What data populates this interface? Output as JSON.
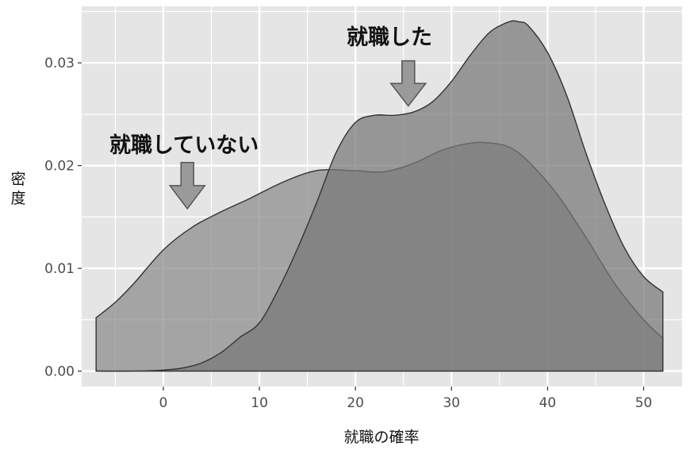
{
  "chart_data": {
    "type": "area",
    "xlabel": "就職の確率",
    "ylabel": "密度",
    "xlim": [
      -8.5,
      54
    ],
    "ylim": [
      -0.0015,
      0.0355
    ],
    "x_ticks": [
      0,
      10,
      20,
      30,
      40,
      50
    ],
    "x_tick_labels": [
      "0",
      "10",
      "20",
      "30",
      "40",
      "50"
    ],
    "y_ticks": [
      0.0,
      0.01,
      0.02,
      0.03
    ],
    "y_tick_labels": [
      "0.00",
      "0.01",
      "0.02",
      "0.03"
    ],
    "grid": true,
    "colors": {
      "panel": "#e5e5e5",
      "grid": "#ffffff",
      "fill_not_employed": "#8a8a8a",
      "fill_employed": "#777777",
      "line": "#333333",
      "arrow_fill": "#9a9a9a",
      "arrow_stroke": "#555555"
    },
    "series": [
      {
        "x": [
          -7,
          -5,
          -3,
          0,
          3,
          6,
          9,
          12,
          15,
          17,
          20,
          23,
          26,
          29,
          32,
          34,
          36,
          38,
          41,
          44,
          47,
          50,
          52
        ],
        "values": [
          0.0052,
          0.0067,
          0.0086,
          0.0118,
          0.014,
          0.0155,
          0.0168,
          0.0182,
          0.0193,
          0.0196,
          0.0195,
          0.0194,
          0.0202,
          0.0215,
          0.0222,
          0.0222,
          0.0218,
          0.0204,
          0.0172,
          0.013,
          0.0085,
          0.005,
          0.0032
        ]
      },
      {
        "x": [
          -7,
          -3,
          0,
          2,
          4,
          6,
          8,
          10,
          12,
          14,
          16,
          18,
          20,
          22,
          24,
          26,
          28,
          30,
          32,
          34,
          36,
          37,
          38,
          40,
          42,
          44,
          46,
          48,
          50,
          52
        ],
        "values": [
          0.0,
          0.0,
          0.0001,
          0.0003,
          0.0008,
          0.0018,
          0.0033,
          0.0047,
          0.008,
          0.012,
          0.0165,
          0.0213,
          0.0242,
          0.0249,
          0.0249,
          0.0252,
          0.0262,
          0.0282,
          0.0308,
          0.033,
          0.034,
          0.034,
          0.0336,
          0.031,
          0.0268,
          0.0212,
          0.0162,
          0.012,
          0.0092,
          0.0077
        ]
      }
    ],
    "annotations": [
      {
        "text": "就職していない",
        "arrow_x": 2.5,
        "arrow_y_top": 0.0203,
        "arrow_y_tip": 0.0158
      },
      {
        "text": "就職した",
        "arrow_x": 25.5,
        "arrow_y_top": 0.0302,
        "arrow_y_tip": 0.0258
      }
    ]
  }
}
